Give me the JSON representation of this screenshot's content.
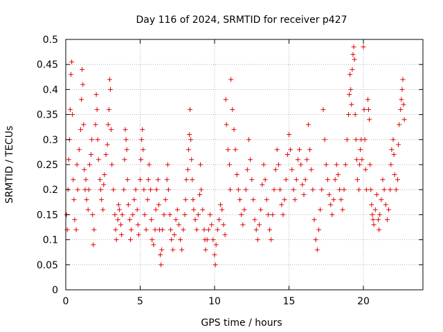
{
  "chart_data": {
    "type": "scatter",
    "title": "Day 116 of 2024, SRMTID for receiver p427",
    "xlabel": "GPS time / hours",
    "ylabel": "SRMTID / TECUs",
    "xlim": [
      0,
      24
    ],
    "ylim": [
      0,
      0.5
    ],
    "xticks": [
      0,
      5,
      10,
      15,
      20
    ],
    "xtick_labels": [
      "0",
      "5",
      "10",
      "15",
      "20"
    ],
    "yticks": [
      0,
      0.05,
      0.1,
      0.15,
      0.2,
      0.25,
      0.3,
      0.35,
      0.4,
      0.45,
      0.5
    ],
    "ytick_labels": [
      "0",
      "0.05",
      "0.1",
      "0.15",
      "0.2",
      "0.25",
      "0.3",
      "0.35",
      "0.4",
      "0.45",
      "0.5"
    ],
    "grid": true,
    "marker": "+",
    "color": "#e00000",
    "series": [
      {
        "name": "SRMTID",
        "points": [
          [
            0.05,
            0.15
          ],
          [
            0.1,
            0.12
          ],
          [
            0.15,
            0.2
          ],
          [
            0.2,
            0.26
          ],
          [
            0.25,
            0.3
          ],
          [
            0.3,
            0.36
          ],
          [
            0.35,
            0.43
          ],
          [
            0.4,
            0.455
          ],
          [
            0.45,
            0.35
          ],
          [
            0.5,
            0.22
          ],
          [
            0.55,
            0.18
          ],
          [
            0.6,
            0.14
          ],
          [
            0.7,
            0.12
          ],
          [
            0.75,
            0.25
          ],
          [
            0.8,
            0.2
          ],
          [
            0.9,
            0.28
          ],
          [
            1.0,
            0.32
          ],
          [
            1.05,
            0.38
          ],
          [
            1.1,
            0.44
          ],
          [
            1.15,
            0.41
          ],
          [
            1.2,
            0.33
          ],
          [
            1.25,
            0.24
          ],
          [
            1.3,
            0.2
          ],
          [
            1.35,
            0.22
          ],
          [
            1.4,
            0.18
          ],
          [
            1.5,
            0.16
          ],
          [
            1.55,
            0.2
          ],
          [
            1.6,
            0.25
          ],
          [
            1.7,
            0.27
          ],
          [
            1.75,
            0.3
          ],
          [
            1.8,
            0.15
          ],
          [
            1.85,
            0.09
          ],
          [
            1.9,
            0.12
          ],
          [
            2.0,
            0.33
          ],
          [
            2.05,
            0.39
          ],
          [
            2.1,
            0.36
          ],
          [
            2.15,
            0.3
          ],
          [
            2.2,
            0.26
          ],
          [
            2.3,
            0.22
          ],
          [
            2.35,
            0.2
          ],
          [
            2.4,
            0.18
          ],
          [
            2.5,
            0.16
          ],
          [
            2.55,
            0.21
          ],
          [
            2.6,
            0.23
          ],
          [
            2.7,
            0.27
          ],
          [
            2.8,
            0.29
          ],
          [
            2.85,
            0.33
          ],
          [
            2.9,
            0.36
          ],
          [
            2.95,
            0.42
          ],
          [
            3.0,
            0.4
          ],
          [
            3.05,
            0.32
          ],
          [
            3.1,
            0.25
          ],
          [
            3.2,
            0.2
          ],
          [
            3.3,
            0.15
          ],
          [
            3.35,
            0.12
          ],
          [
            3.4,
            0.1
          ],
          [
            3.5,
            0.14
          ],
          [
            3.55,
            0.17
          ],
          [
            3.6,
            0.16
          ],
          [
            3.7,
            0.13
          ],
          [
            3.75,
            0.11
          ],
          [
            3.8,
            0.15
          ],
          [
            3.9,
            0.2
          ],
          [
            3.95,
            0.26
          ],
          [
            4.0,
            0.32
          ],
          [
            4.05,
            0.3
          ],
          [
            4.1,
            0.28
          ],
          [
            4.15,
            0.22
          ],
          [
            4.2,
            0.17
          ],
          [
            4.3,
            0.14
          ],
          [
            4.35,
            0.1
          ],
          [
            4.4,
            0.12
          ],
          [
            4.5,
            0.15
          ],
          [
            4.6,
            0.18
          ],
          [
            4.7,
            0.2
          ],
          [
            4.8,
            0.16
          ],
          [
            4.85,
            0.13
          ],
          [
            4.9,
            0.11
          ],
          [
            5.0,
            0.22
          ],
          [
            5.05,
            0.26
          ],
          [
            5.1,
            0.3
          ],
          [
            5.15,
            0.32
          ],
          [
            5.2,
            0.28
          ],
          [
            5.25,
            0.2
          ],
          [
            5.3,
            0.15
          ],
          [
            5.4,
            0.12
          ],
          [
            5.5,
            0.18
          ],
          [
            5.55,
            0.22
          ],
          [
            5.6,
            0.25
          ],
          [
            5.7,
            0.2
          ],
          [
            5.75,
            0.14
          ],
          [
            5.8,
            0.1
          ],
          [
            5.9,
            0.09
          ],
          [
            6.0,
            0.12
          ],
          [
            6.05,
            0.16
          ],
          [
            6.1,
            0.2
          ],
          [
            6.2,
            0.22
          ],
          [
            6.25,
            0.17
          ],
          [
            6.3,
            0.12
          ],
          [
            6.35,
            0.07
          ],
          [
            6.4,
            0.05
          ],
          [
            6.45,
            0.08
          ],
          [
            6.5,
            0.12
          ],
          [
            6.6,
            0.15
          ],
          [
            6.7,
            0.18
          ],
          [
            6.8,
            0.22
          ],
          [
            6.85,
            0.25
          ],
          [
            6.9,
            0.2
          ],
          [
            7.0,
            0.15
          ],
          [
            7.05,
            0.12
          ],
          [
            7.1,
            0.1
          ],
          [
            7.2,
            0.08
          ],
          [
            7.3,
            0.11
          ],
          [
            7.4,
            0.14
          ],
          [
            7.5,
            0.16
          ],
          [
            7.6,
            0.13
          ],
          [
            7.7,
            0.1
          ],
          [
            7.8,
            0.08
          ],
          [
            7.9,
            0.12
          ],
          [
            8.0,
            0.15
          ],
          [
            8.05,
            0.18
          ],
          [
            8.1,
            0.22
          ],
          [
            8.2,
            0.24
          ],
          [
            8.25,
            0.28
          ],
          [
            8.3,
            0.31
          ],
          [
            8.35,
            0.36
          ],
          [
            8.4,
            0.3
          ],
          [
            8.45,
            0.26
          ],
          [
            8.5,
            0.22
          ],
          [
            8.55,
            0.18
          ],
          [
            8.6,
            0.16
          ],
          [
            8.7,
            0.14
          ],
          [
            8.8,
            0.12
          ],
          [
            8.9,
            0.15
          ],
          [
            9.0,
            0.19
          ],
          [
            9.05,
            0.25
          ],
          [
            9.1,
            0.2
          ],
          [
            9.2,
            0.16
          ],
          [
            9.3,
            0.12
          ],
          [
            9.35,
            0.1
          ],
          [
            9.4,
            0.08
          ],
          [
            9.5,
            0.1
          ],
          [
            9.6,
            0.12
          ],
          [
            9.7,
            0.15
          ],
          [
            9.8,
            0.13
          ],
          [
            9.9,
            0.1
          ],
          [
            10.0,
            0.07
          ],
          [
            10.05,
            0.05
          ],
          [
            10.1,
            0.09
          ],
          [
            10.2,
            0.12
          ],
          [
            10.3,
            0.14
          ],
          [
            10.4,
            0.17
          ],
          [
            10.5,
            0.16
          ],
          [
            10.6,
            0.13
          ],
          [
            10.7,
            0.11
          ],
          [
            10.75,
            0.38
          ],
          [
            10.8,
            0.33
          ],
          [
            10.9,
            0.28
          ],
          [
            11.0,
            0.25
          ],
          [
            11.05,
            0.2
          ],
          [
            11.1,
            0.42
          ],
          [
            11.2,
            0.36
          ],
          [
            11.3,
            0.32
          ],
          [
            11.4,
            0.28
          ],
          [
            11.5,
            0.23
          ],
          [
            11.6,
            0.2
          ],
          [
            11.7,
            0.18
          ],
          [
            11.8,
            0.15
          ],
          [
            11.9,
            0.13
          ],
          [
            12.0,
            0.16
          ],
          [
            12.1,
            0.2
          ],
          [
            12.2,
            0.24
          ],
          [
            12.3,
            0.3
          ],
          [
            12.4,
            0.26
          ],
          [
            12.5,
            0.22
          ],
          [
            12.6,
            0.18
          ],
          [
            12.7,
            0.14
          ],
          [
            12.8,
            0.12
          ],
          [
            12.9,
            0.1
          ],
          [
            13.0,
            0.13
          ],
          [
            13.1,
            0.16
          ],
          [
            13.2,
            0.21
          ],
          [
            13.3,
            0.25
          ],
          [
            13.4,
            0.22
          ],
          [
            13.5,
            0.18
          ],
          [
            13.6,
            0.15
          ],
          [
            13.7,
            0.12
          ],
          [
            13.8,
            0.1
          ],
          [
            13.9,
            0.15
          ],
          [
            14.0,
            0.2
          ],
          [
            14.1,
            0.24
          ],
          [
            14.2,
            0.28
          ],
          [
            14.3,
            0.25
          ],
          [
            14.4,
            0.2
          ],
          [
            14.5,
            0.17
          ],
          [
            14.6,
            0.15
          ],
          [
            14.7,
            0.18
          ],
          [
            14.8,
            0.22
          ],
          [
            14.9,
            0.27
          ],
          [
            15.0,
            0.31
          ],
          [
            15.1,
            0.28
          ],
          [
            15.2,
            0.24
          ],
          [
            15.3,
            0.2
          ],
          [
            15.4,
            0.18
          ],
          [
            15.5,
            0.22
          ],
          [
            15.6,
            0.26
          ],
          [
            15.7,
            0.28
          ],
          [
            15.8,
            0.25
          ],
          [
            15.9,
            0.21
          ],
          [
            16.0,
            0.19
          ],
          [
            16.1,
            0.22
          ],
          [
            16.2,
            0.26
          ],
          [
            16.3,
            0.33
          ],
          [
            16.4,
            0.28
          ],
          [
            16.5,
            0.24
          ],
          [
            16.6,
            0.2
          ],
          [
            16.7,
            0.14
          ],
          [
            16.8,
            0.1
          ],
          [
            16.9,
            0.08
          ],
          [
            17.0,
            0.12
          ],
          [
            17.1,
            0.16
          ],
          [
            17.2,
            0.2
          ],
          [
            17.3,
            0.36
          ],
          [
            17.4,
            0.3
          ],
          [
            17.5,
            0.25
          ],
          [
            17.6,
            0.22
          ],
          [
            17.7,
            0.19
          ],
          [
            17.8,
            0.17
          ],
          [
            17.9,
            0.15
          ],
          [
            18.0,
            0.18
          ],
          [
            18.1,
            0.22
          ],
          [
            18.2,
            0.25
          ],
          [
            18.3,
            0.23
          ],
          [
            18.4,
            0.2
          ],
          [
            18.5,
            0.18
          ],
          [
            18.6,
            0.16
          ],
          [
            18.7,
            0.2
          ],
          [
            18.8,
            0.25
          ],
          [
            18.9,
            0.3
          ],
          [
            19.0,
            0.35
          ],
          [
            19.05,
            0.39
          ],
          [
            19.1,
            0.43
          ],
          [
            19.15,
            0.4
          ],
          [
            19.2,
            0.37
          ],
          [
            19.25,
            0.44
          ],
          [
            19.3,
            0.47
          ],
          [
            19.35,
            0.485
          ],
          [
            19.4,
            0.46
          ],
          [
            19.45,
            0.35
          ],
          [
            19.5,
            0.3
          ],
          [
            19.55,
            0.26
          ],
          [
            19.6,
            0.22
          ],
          [
            19.7,
            0.2
          ],
          [
            19.75,
            0.25
          ],
          [
            19.8,
            0.28
          ],
          [
            19.85,
            0.3
          ],
          [
            19.9,
            0.26
          ],
          [
            20.0,
            0.485
          ],
          [
            20.05,
            0.36
          ],
          [
            20.1,
            0.3
          ],
          [
            20.15,
            0.24
          ],
          [
            20.2,
            0.2
          ],
          [
            20.3,
            0.38
          ],
          [
            20.35,
            0.36
          ],
          [
            20.4,
            0.34
          ],
          [
            20.45,
            0.25
          ],
          [
            20.5,
            0.2
          ],
          [
            20.55,
            0.17
          ],
          [
            20.6,
            0.15
          ],
          [
            20.65,
            0.14
          ],
          [
            20.7,
            0.13
          ],
          [
            20.8,
            0.16
          ],
          [
            20.9,
            0.19
          ],
          [
            21.0,
            0.14
          ],
          [
            21.05,
            0.12
          ],
          [
            21.1,
            0.15
          ],
          [
            21.2,
            0.18
          ],
          [
            21.3,
            0.22
          ],
          [
            21.4,
            0.2
          ],
          [
            21.5,
            0.17
          ],
          [
            21.6,
            0.14
          ],
          [
            21.7,
            0.16
          ],
          [
            21.8,
            0.2
          ],
          [
            21.85,
            0.25
          ],
          [
            21.9,
            0.28
          ],
          [
            22.0,
            0.3
          ],
          [
            22.05,
            0.27
          ],
          [
            22.1,
            0.23
          ],
          [
            22.2,
            0.2
          ],
          [
            22.3,
            0.22
          ],
          [
            22.35,
            0.29
          ],
          [
            22.4,
            0.33
          ],
          [
            22.5,
            0.36
          ],
          [
            22.55,
            0.38
          ],
          [
            22.6,
            0.4
          ],
          [
            22.65,
            0.42
          ],
          [
            22.7,
            0.37
          ],
          [
            22.75,
            0.34
          ]
        ]
      }
    ]
  }
}
